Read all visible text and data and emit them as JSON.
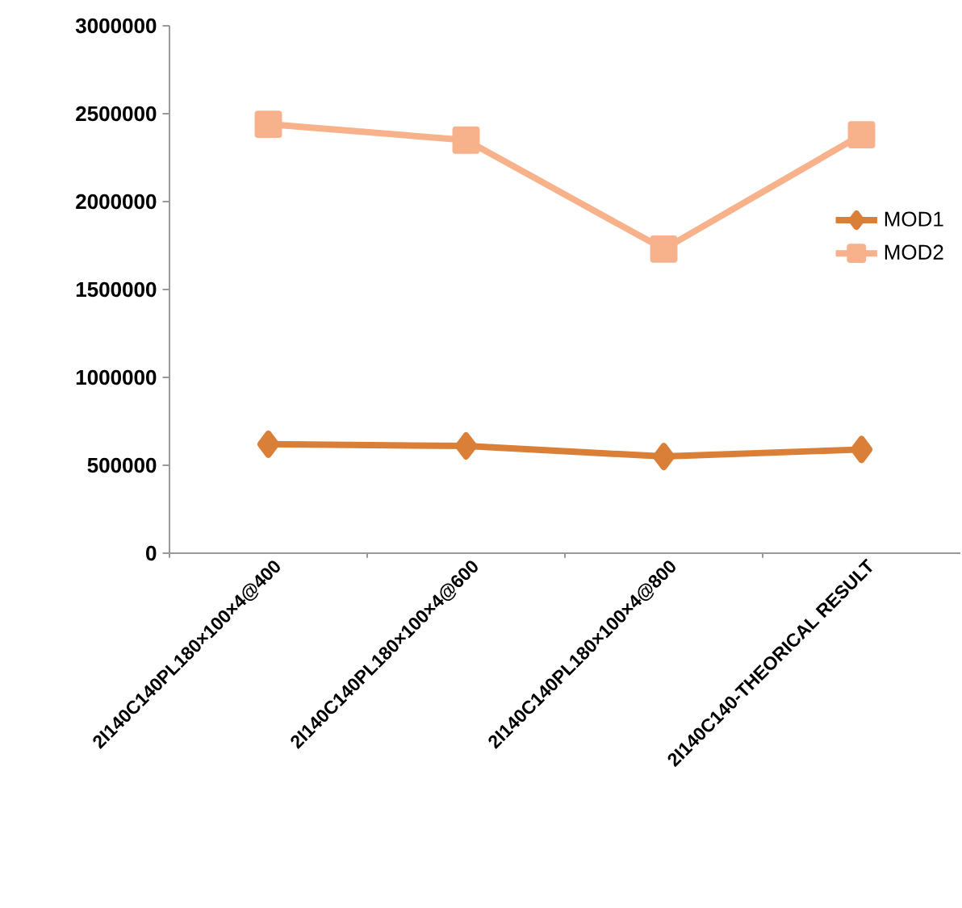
{
  "chart_data": {
    "type": "line",
    "categories": [
      "2I140C140PL180×100×4@400",
      "2I140C140PL180×100×4@600",
      "2I140C140PL180×100×4@800",
      "2I140C140-THEORICAL RESULT"
    ],
    "series": [
      {
        "name": "MOD1",
        "color": "#d97f38",
        "marker": "diamond",
        "values": [
          620000,
          610000,
          550000,
          590000
        ]
      },
      {
        "name": "MOD2",
        "color": "#f7b28c",
        "marker": "square",
        "values": [
          2440000,
          2350000,
          1730000,
          2380000
        ]
      }
    ],
    "ylim": [
      0,
      3000000
    ],
    "yticks": [
      0,
      500000,
      1000000,
      1500000,
      2000000,
      2500000,
      3000000
    ],
    "legend": "right",
    "line_style": "solid",
    "grid": false
  }
}
